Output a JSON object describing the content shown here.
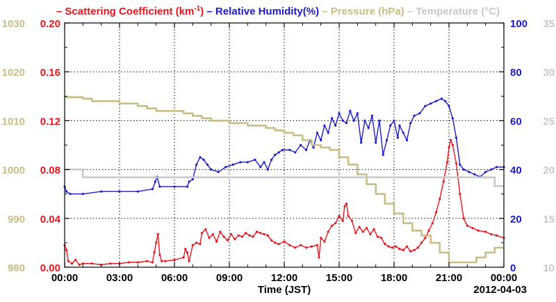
{
  "chart_data": {
    "type": "line",
    "legend": {
      "placement": "top",
      "items": [
        {
          "prefix": "–",
          "label": "Scattering Coefficient (km",
          "sup": "-1",
          "suffix": ")",
          "color": "#e8141b"
        },
        {
          "prefix": "–",
          "label": "Relative Humidity(%)",
          "color": "#1a1acc"
        },
        {
          "prefix": "–",
          "label": "Pressure (hPa)",
          "color": "#c8bd84"
        },
        {
          "prefix": "–",
          "label": "Temperature (°C)",
          "color": "#c8c8c8"
        }
      ]
    },
    "xlabel": "Time (JST)",
    "date_label": "2012-04-03",
    "x_ticks": [
      "00:00",
      "03:00",
      "06:00",
      "09:00",
      "12:00",
      "15:00",
      "18:00",
      "21:00",
      "00:00"
    ],
    "x_range_hours": [
      0,
      24
    ],
    "grid": true,
    "axes": {
      "pressure": {
        "side": "left-outer",
        "ticks": [
          "980",
          "990",
          "1000",
          "1010",
          "1020",
          "1030"
        ],
        "range": [
          980,
          1030
        ],
        "color": "#c8bd84"
      },
      "scattering": {
        "side": "left-inner",
        "ticks": [
          "0.00",
          "0.04",
          "0.08",
          "0.12",
          "0.16",
          "0.20"
        ],
        "range": [
          0,
          0.2
        ],
        "color": "#e8141b"
      },
      "humidity": {
        "side": "right-inner",
        "ticks": [
          "0",
          "20",
          "40",
          "60",
          "80",
          "100"
        ],
        "range": [
          0,
          100
        ],
        "color": "#1a1acc"
      },
      "temperature": {
        "side": "right-outer",
        "ticks": [
          "10",
          "15",
          "20",
          "25",
          "30",
          "35"
        ],
        "range": [
          10,
          35
        ],
        "color": "#c8c8c8"
      }
    },
    "series": [
      {
        "name": "Scattering Coefficient (km-1)",
        "axis": "scattering",
        "color": "#e8141b",
        "points": [
          [
            0,
            0.018
          ],
          [
            0.1,
            0.014
          ],
          [
            0.2,
            0.005
          ],
          [
            0.4,
            0.003
          ],
          [
            0.6,
            0.006
          ],
          [
            0.8,
            0.002
          ],
          [
            1.0,
            0.003
          ],
          [
            1.5,
            0.003
          ],
          [
            2.0,
            0.002
          ],
          [
            2.5,
            0.003
          ],
          [
            3.0,
            0.003
          ],
          [
            3.5,
            0.004
          ],
          [
            4.0,
            0.004
          ],
          [
            4.5,
            0.005
          ],
          [
            4.8,
            0.004
          ],
          [
            4.9,
            0.012
          ],
          [
            5.0,
            0.02
          ],
          [
            5.1,
            0.027
          ],
          [
            5.2,
            0.01
          ],
          [
            5.3,
            0.005
          ],
          [
            5.5,
            0.005
          ],
          [
            6.0,
            0.006
          ],
          [
            6.5,
            0.008
          ],
          [
            6.6,
            0.015
          ],
          [
            6.7,
            0.012
          ],
          [
            6.8,
            0.005
          ],
          [
            7.0,
            0.018
          ],
          [
            7.2,
            0.02
          ],
          [
            7.4,
            0.019
          ],
          [
            7.5,
            0.028
          ],
          [
            7.7,
            0.031
          ],
          [
            7.9,
            0.024
          ],
          [
            8.1,
            0.027
          ],
          [
            8.3,
            0.021
          ],
          [
            8.5,
            0.029
          ],
          [
            8.7,
            0.025
          ],
          [
            8.9,
            0.022
          ],
          [
            9.1,
            0.027
          ],
          [
            9.3,
            0.023
          ],
          [
            9.5,
            0.026
          ],
          [
            9.7,
            0.025
          ],
          [
            9.9,
            0.028
          ],
          [
            10.1,
            0.026
          ],
          [
            10.3,
            0.025
          ],
          [
            10.5,
            0.029
          ],
          [
            10.7,
            0.028
          ],
          [
            10.9,
            0.027
          ],
          [
            11.1,
            0.026
          ],
          [
            11.3,
            0.022
          ],
          [
            11.5,
            0.02
          ],
          [
            11.7,
            0.019
          ],
          [
            12.0,
            0.021
          ],
          [
            12.3,
            0.018
          ],
          [
            12.6,
            0.016
          ],
          [
            12.9,
            0.018
          ],
          [
            13.2,
            0.016
          ],
          [
            13.5,
            0.017
          ],
          [
            13.8,
            0.018
          ],
          [
            13.9,
            0.008
          ],
          [
            14.0,
            0.024
          ],
          [
            14.2,
            0.021
          ],
          [
            14.4,
            0.029
          ],
          [
            14.6,
            0.034
          ],
          [
            14.8,
            0.036
          ],
          [
            15.0,
            0.042
          ],
          [
            15.2,
            0.038
          ],
          [
            15.3,
            0.05
          ],
          [
            15.4,
            0.052
          ],
          [
            15.5,
            0.042
          ],
          [
            15.7,
            0.038
          ],
          [
            15.9,
            0.028
          ],
          [
            16.1,
            0.033
          ],
          [
            16.3,
            0.029
          ],
          [
            16.5,
            0.032
          ],
          [
            16.7,
            0.027
          ],
          [
            16.9,
            0.031
          ],
          [
            17.1,
            0.025
          ],
          [
            17.3,
            0.024
          ],
          [
            17.5,
            0.019
          ],
          [
            17.7,
            0.017
          ],
          [
            17.9,
            0.016
          ],
          [
            18.1,
            0.017
          ],
          [
            18.3,
            0.015
          ],
          [
            18.5,
            0.014
          ],
          [
            18.7,
            0.017
          ],
          [
            18.9,
            0.013
          ],
          [
            19.1,
            0.014
          ],
          [
            19.3,
            0.016
          ],
          [
            19.5,
            0.02
          ],
          [
            19.7,
            0.024
          ],
          [
            19.9,
            0.03
          ],
          [
            20.1,
            0.036
          ],
          [
            20.3,
            0.045
          ],
          [
            20.5,
            0.056
          ],
          [
            20.7,
            0.07
          ],
          [
            20.9,
            0.086
          ],
          [
            21.0,
            0.098
          ],
          [
            21.1,
            0.104
          ],
          [
            21.2,
            0.1
          ],
          [
            21.4,
            0.085
          ],
          [
            21.6,
            0.06
          ],
          [
            21.8,
            0.04
          ],
          [
            22.0,
            0.034
          ],
          [
            22.3,
            0.032
          ],
          [
            22.6,
            0.03
          ],
          [
            23.0,
            0.029
          ],
          [
            23.3,
            0.027
          ],
          [
            23.6,
            0.026
          ],
          [
            24.0,
            0.024
          ]
        ]
      },
      {
        "name": "Relative Humidity(%)",
        "axis": "humidity",
        "color": "#1a1acc",
        "points": [
          [
            0,
            33
          ],
          [
            0.1,
            31
          ],
          [
            0.3,
            30
          ],
          [
            1.0,
            30
          ],
          [
            2.0,
            31
          ],
          [
            3.0,
            31
          ],
          [
            4.0,
            31
          ],
          [
            4.8,
            32
          ],
          [
            4.95,
            35
          ],
          [
            5.05,
            37
          ],
          [
            5.2,
            33
          ],
          [
            6.0,
            33
          ],
          [
            6.7,
            33
          ],
          [
            6.8,
            35
          ],
          [
            7.0,
            36
          ],
          [
            7.2,
            42
          ],
          [
            7.4,
            45
          ],
          [
            7.6,
            44
          ],
          [
            7.8,
            42
          ],
          [
            8.0,
            40
          ],
          [
            8.4,
            39
          ],
          [
            8.8,
            41
          ],
          [
            9.2,
            42
          ],
          [
            9.6,
            43
          ],
          [
            10.0,
            43
          ],
          [
            10.4,
            44
          ],
          [
            10.7,
            41
          ],
          [
            10.9,
            43
          ],
          [
            11.1,
            40
          ],
          [
            11.3,
            44
          ],
          [
            11.5,
            46
          ],
          [
            11.7,
            47
          ],
          [
            11.9,
            48
          ],
          [
            12.3,
            48
          ],
          [
            12.6,
            47
          ],
          [
            12.9,
            50
          ],
          [
            13.2,
            48
          ],
          [
            13.4,
            52
          ],
          [
            13.6,
            49
          ],
          [
            13.8,
            55
          ],
          [
            14.0,
            52
          ],
          [
            14.2,
            58
          ],
          [
            14.4,
            55
          ],
          [
            14.6,
            61
          ],
          [
            14.8,
            58
          ],
          [
            15.0,
            63
          ],
          [
            15.2,
            60
          ],
          [
            15.4,
            59
          ],
          [
            15.6,
            64
          ],
          [
            15.8,
            60
          ],
          [
            16.0,
            63
          ],
          [
            16.2,
            51
          ],
          [
            16.4,
            60
          ],
          [
            16.6,
            57
          ],
          [
            16.8,
            62
          ],
          [
            17.0,
            51
          ],
          [
            17.2,
            60
          ],
          [
            17.4,
            46
          ],
          [
            17.6,
            52
          ],
          [
            17.8,
            58
          ],
          [
            18.0,
            60
          ],
          [
            18.2,
            53
          ],
          [
            18.3,
            58
          ],
          [
            18.5,
            55
          ],
          [
            18.7,
            52
          ],
          [
            18.9,
            59
          ],
          [
            19.1,
            62
          ],
          [
            19.4,
            63
          ],
          [
            19.7,
            66
          ],
          [
            20.0,
            67
          ],
          [
            20.3,
            68
          ],
          [
            20.6,
            69
          ],
          [
            20.8,
            68
          ],
          [
            21.0,
            66
          ],
          [
            21.2,
            61
          ],
          [
            21.4,
            53
          ],
          [
            21.6,
            42
          ],
          [
            21.8,
            40
          ],
          [
            22.1,
            39
          ],
          [
            22.4,
            38
          ],
          [
            22.7,
            37
          ],
          [
            23.0,
            39
          ],
          [
            23.3,
            40
          ],
          [
            23.6,
            41
          ],
          [
            24.0,
            41
          ]
        ]
      },
      {
        "name": "Pressure (hPa)",
        "axis": "pressure",
        "color": "#c8bd84",
        "points": [
          [
            0,
            1014.8
          ],
          [
            1.0,
            1014.8
          ],
          [
            1.0,
            1014.5
          ],
          [
            1.5,
            1014.5
          ],
          [
            1.5,
            1014.0
          ],
          [
            3.0,
            1014.0
          ],
          [
            3.0,
            1013.5
          ],
          [
            4.0,
            1013.5
          ],
          [
            4.0,
            1013.0
          ],
          [
            4.5,
            1013.0
          ],
          [
            4.5,
            1012.5
          ],
          [
            5.0,
            1012.5
          ],
          [
            5.0,
            1012.0
          ],
          [
            6.5,
            1012.0
          ],
          [
            6.5,
            1011.5
          ],
          [
            7.0,
            1011.5
          ],
          [
            7.0,
            1011.0
          ],
          [
            7.5,
            1011.0
          ],
          [
            7.5,
            1010.5
          ],
          [
            8.0,
            1010.5
          ],
          [
            8.0,
            1010.0
          ],
          [
            9.0,
            1010.0
          ],
          [
            9.0,
            1009.5
          ],
          [
            10.0,
            1009.5
          ],
          [
            10.0,
            1009.0
          ],
          [
            11.0,
            1009.0
          ],
          [
            11.0,
            1008.5
          ],
          [
            11.5,
            1008.5
          ],
          [
            11.5,
            1008.0
          ],
          [
            12.0,
            1008.0
          ],
          [
            12.0,
            1007.5
          ],
          [
            12.5,
            1007.5
          ],
          [
            12.5,
            1007.0
          ],
          [
            13.0,
            1007.0
          ],
          [
            13.0,
            1006.0
          ],
          [
            13.5,
            1006.0
          ],
          [
            13.5,
            1005.0
          ],
          [
            14.0,
            1005.0
          ],
          [
            14.0,
            1004.5
          ],
          [
            14.5,
            1004.5
          ],
          [
            14.5,
            1004.0
          ],
          [
            15.0,
            1004.0
          ],
          [
            15.0,
            1002.5
          ],
          [
            15.5,
            1002.5
          ],
          [
            15.5,
            1001.0
          ],
          [
            16.0,
            1001.0
          ],
          [
            16.0,
            999.0
          ],
          [
            16.5,
            999.0
          ],
          [
            16.5,
            997.0
          ],
          [
            17.0,
            997.0
          ],
          [
            17.0,
            995.0
          ],
          [
            17.5,
            995.0
          ],
          [
            17.5,
            993.0
          ],
          [
            18.0,
            993.0
          ],
          [
            18.0,
            991.0
          ],
          [
            18.5,
            991.0
          ],
          [
            18.5,
            989.0
          ],
          [
            19.0,
            989.0
          ],
          [
            19.0,
            987.5
          ],
          [
            19.5,
            987.5
          ],
          [
            19.5,
            986.5
          ],
          [
            20.0,
            986.5
          ],
          [
            20.0,
            985.0
          ],
          [
            20.5,
            985.0
          ],
          [
            20.5,
            983.0
          ],
          [
            21.0,
            983.0
          ],
          [
            21.0,
            981.0
          ],
          [
            22.5,
            981.0
          ],
          [
            22.5,
            982.0
          ],
          [
            23.0,
            982.0
          ],
          [
            23.0,
            983.0
          ],
          [
            23.5,
            983.0
          ],
          [
            23.5,
            984.0
          ],
          [
            24.0,
            984.0
          ]
        ]
      },
      {
        "name": "Temperature (°C)",
        "axis": "temperature",
        "color": "#c8c8c8",
        "points": [
          [
            0,
            20
          ],
          [
            1.0,
            20
          ],
          [
            1.0,
            19.2
          ],
          [
            23.5,
            19.2
          ],
          [
            23.5,
            18.3
          ],
          [
            24.0,
            18.3
          ]
        ]
      }
    ]
  }
}
